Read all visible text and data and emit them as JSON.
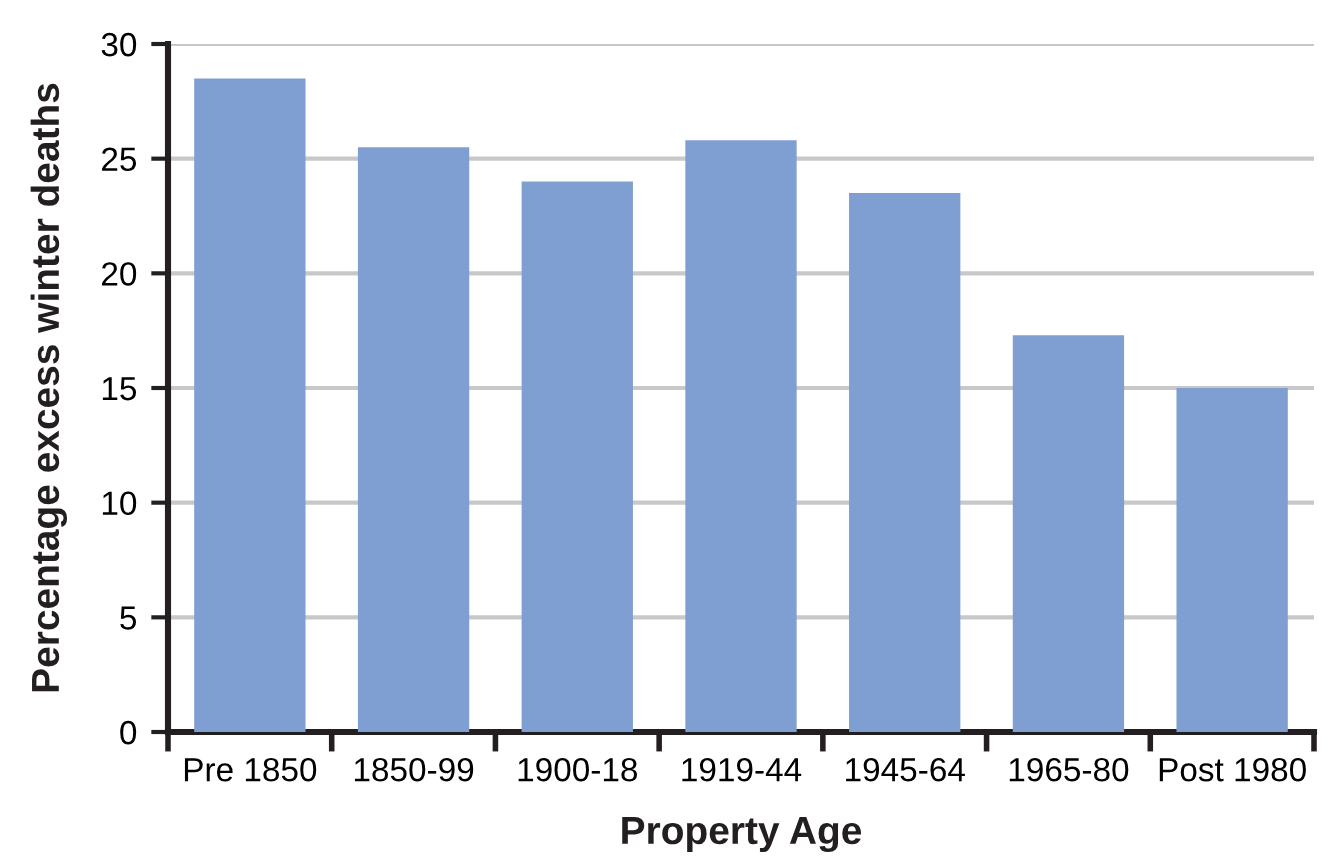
{
  "chart_data": {
    "type": "bar",
    "xlabel": "Property Age",
    "ylabel": "Percentage excess winter deaths",
    "categories": [
      "Pre 1850",
      "1850-99",
      "1900-18",
      "1919-44",
      "1945-64",
      "1965-80",
      "Post 1980"
    ],
    "values": [
      28.5,
      25.5,
      24.0,
      25.8,
      23.5,
      17.3,
      15.0
    ],
    "color": "#7f9fd3",
    "ylim": [
      0,
      30
    ],
    "yticks": [
      0,
      5,
      10,
      15,
      20,
      25,
      30
    ],
    "grid": "y",
    "legend": false
  }
}
